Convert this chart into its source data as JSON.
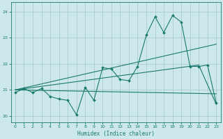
{
  "xlabel": "Humidex (Indice chaleur)",
  "ylabel": "",
  "bg_color": "#cce8ea",
  "grid_color": "#aacccc",
  "line_color": "#1a7a6e",
  "x_ticks": [
    0,
    1,
    2,
    3,
    4,
    5,
    6,
    7,
    8,
    9,
    10,
    11,
    12,
    13,
    14,
    15,
    16,
    17,
    18,
    19,
    20,
    21,
    22,
    23
  ],
  "yticks": [
    20,
    21,
    22,
    23,
    24
  ],
  "ylim": [
    19.75,
    24.35
  ],
  "xlim": [
    -0.5,
    23.5
  ],
  "series1_x": [
    0,
    1,
    2,
    3,
    4,
    5,
    6,
    7,
    8,
    9,
    10,
    11,
    12,
    13,
    14,
    15,
    16,
    17,
    18,
    19,
    20,
    21,
    22,
    23
  ],
  "series1_y": [
    20.9,
    21.05,
    20.9,
    21.05,
    20.75,
    20.65,
    20.6,
    20.05,
    21.1,
    20.6,
    21.85,
    21.8,
    21.4,
    21.35,
    21.9,
    23.1,
    23.8,
    23.2,
    23.85,
    23.6,
    21.9,
    21.9,
    21.95,
    20.5
  ],
  "series2_x": [
    0,
    23
  ],
  "series2_y": [
    21.0,
    22.75
  ],
  "series3_x": [
    0,
    23
  ],
  "series3_y": [
    21.0,
    20.85
  ],
  "series4_x": [
    0,
    21,
    23
  ],
  "series4_y": [
    21.0,
    21.95,
    20.45
  ]
}
